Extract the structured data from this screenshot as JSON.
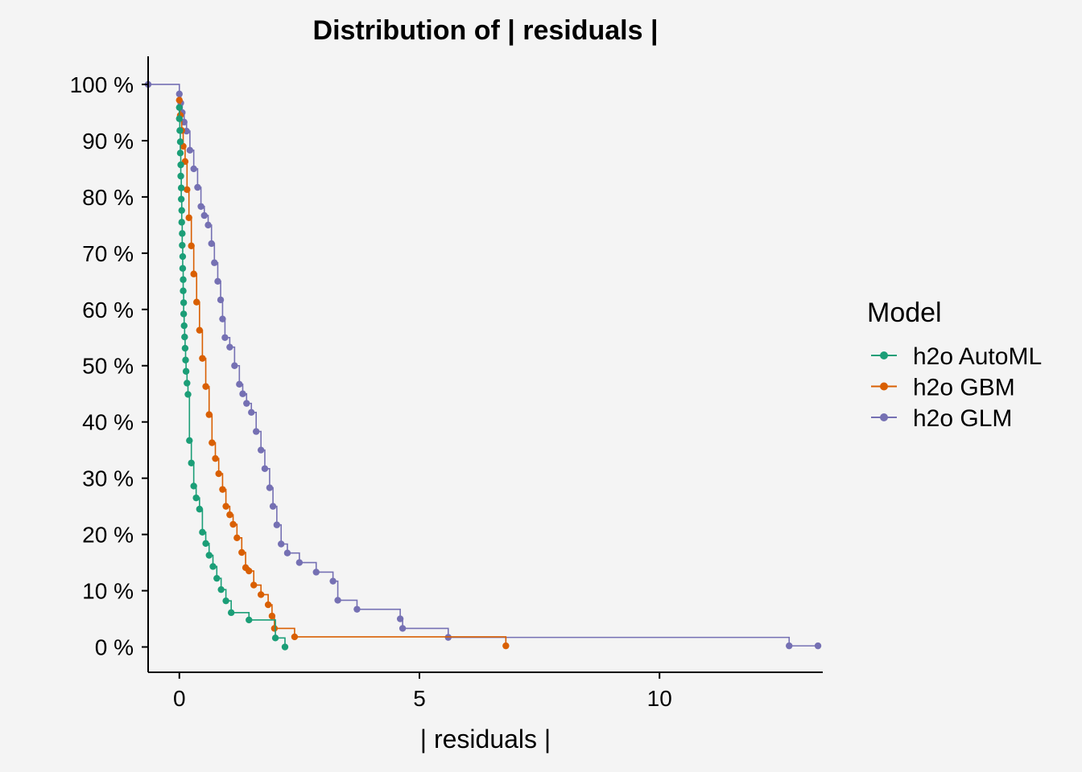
{
  "chart_data": {
    "type": "line",
    "step": true,
    "title": "Distribution of | residuals |",
    "xlabel": "| residuals |",
    "ylabel": "",
    "xlim": [
      -0.65,
      13.4
    ],
    "ylim": [
      -4.5,
      105
    ],
    "x_ticks": [
      0,
      5,
      10
    ],
    "y_ticks": [
      0,
      10,
      20,
      30,
      40,
      50,
      60,
      70,
      80,
      90,
      100
    ],
    "y_tick_labels": [
      "0 %",
      "10 %",
      "20 %",
      "30 %",
      "40 %",
      "50 %",
      "60 %",
      "70 %",
      "80 %",
      "90 %",
      "100 %"
    ],
    "legend": {
      "title": "Model",
      "position": "right"
    },
    "series": [
      {
        "name": "h2o AutoML",
        "color": "#1b9e77",
        "x": [
          0.0,
          0.0,
          0.01,
          0.02,
          0.02,
          0.03,
          0.03,
          0.04,
          0.04,
          0.05,
          0.05,
          0.06,
          0.06,
          0.07,
          0.07,
          0.08,
          0.08,
          0.09,
          0.09,
          0.1,
          0.11,
          0.12,
          0.13,
          0.14,
          0.16,
          0.18,
          0.21,
          0.25,
          0.3,
          0.35,
          0.42,
          0.48,
          0.55,
          0.62,
          0.7,
          0.78,
          0.87,
          0.97,
          1.08,
          1.45,
          2.0,
          2.2
        ],
        "y": [
          95.9,
          93.9,
          91.8,
          89.8,
          87.8,
          85.7,
          83.7,
          81.6,
          79.6,
          77.6,
          75.5,
          73.5,
          71.4,
          69.4,
          67.3,
          65.3,
          63.3,
          61.2,
          59.2,
          57.1,
          55.1,
          53.1,
          51.0,
          49.0,
          46.9,
          44.9,
          36.7,
          32.7,
          28.6,
          26.5,
          24.5,
          20.4,
          18.4,
          16.3,
          14.3,
          12.2,
          10.2,
          8.2,
          6.1,
          4.8,
          1.6,
          0.0
        ]
      },
      {
        "name": "h2o GBM",
        "color": "#d95f02",
        "x": [
          0.0,
          0.02,
          0.05,
          0.08,
          0.12,
          0.16,
          0.2,
          0.25,
          0.3,
          0.36,
          0.42,
          0.48,
          0.55,
          0.62,
          0.68,
          0.75,
          0.82,
          0.9,
          0.97,
          1.05,
          1.12,
          1.2,
          1.3,
          1.38,
          1.45,
          1.55,
          1.7,
          1.85,
          1.93,
          1.98,
          2.4,
          6.8
        ],
        "y": [
          97.2,
          94.5,
          91.8,
          89.0,
          86.3,
          81.3,
          76.3,
          71.3,
          66.3,
          61.3,
          56.3,
          51.3,
          46.3,
          41.3,
          36.3,
          33.5,
          30.8,
          28.0,
          25.0,
          23.5,
          21.8,
          19.4,
          16.8,
          14.1,
          13.5,
          11.0,
          9.3,
          7.5,
          5.5,
          3.3,
          1.8,
          0.2
        ]
      },
      {
        "name": "h2o GLM",
        "color": "#7570b3",
        "x": [
          -0.65,
          0.0,
          0.03,
          0.06,
          0.1,
          0.15,
          0.22,
          0.3,
          0.38,
          0.45,
          0.52,
          0.6,
          0.67,
          0.73,
          0.8,
          0.86,
          0.9,
          0.95,
          1.05,
          1.15,
          1.25,
          1.32,
          1.4,
          1.5,
          1.6,
          1.7,
          1.78,
          1.88,
          1.95,
          2.03,
          2.12,
          2.25,
          2.5,
          2.85,
          3.2,
          3.3,
          3.7,
          4.6,
          4.65,
          5.6,
          12.7,
          13.3
        ],
        "y": [
          100.0,
          98.3,
          96.7,
          95.0,
          93.3,
          91.7,
          88.3,
          85.0,
          81.7,
          78.3,
          76.7,
          75.0,
          71.7,
          68.3,
          65.0,
          61.7,
          58.3,
          55.0,
          53.3,
          50.0,
          46.7,
          45.0,
          43.3,
          41.7,
          38.3,
          35.0,
          31.7,
          28.3,
          25.0,
          21.7,
          18.3,
          16.7,
          15.0,
          13.3,
          11.7,
          8.3,
          6.7,
          5.0,
          3.3,
          1.7,
          0.2,
          0.2
        ]
      }
    ]
  }
}
